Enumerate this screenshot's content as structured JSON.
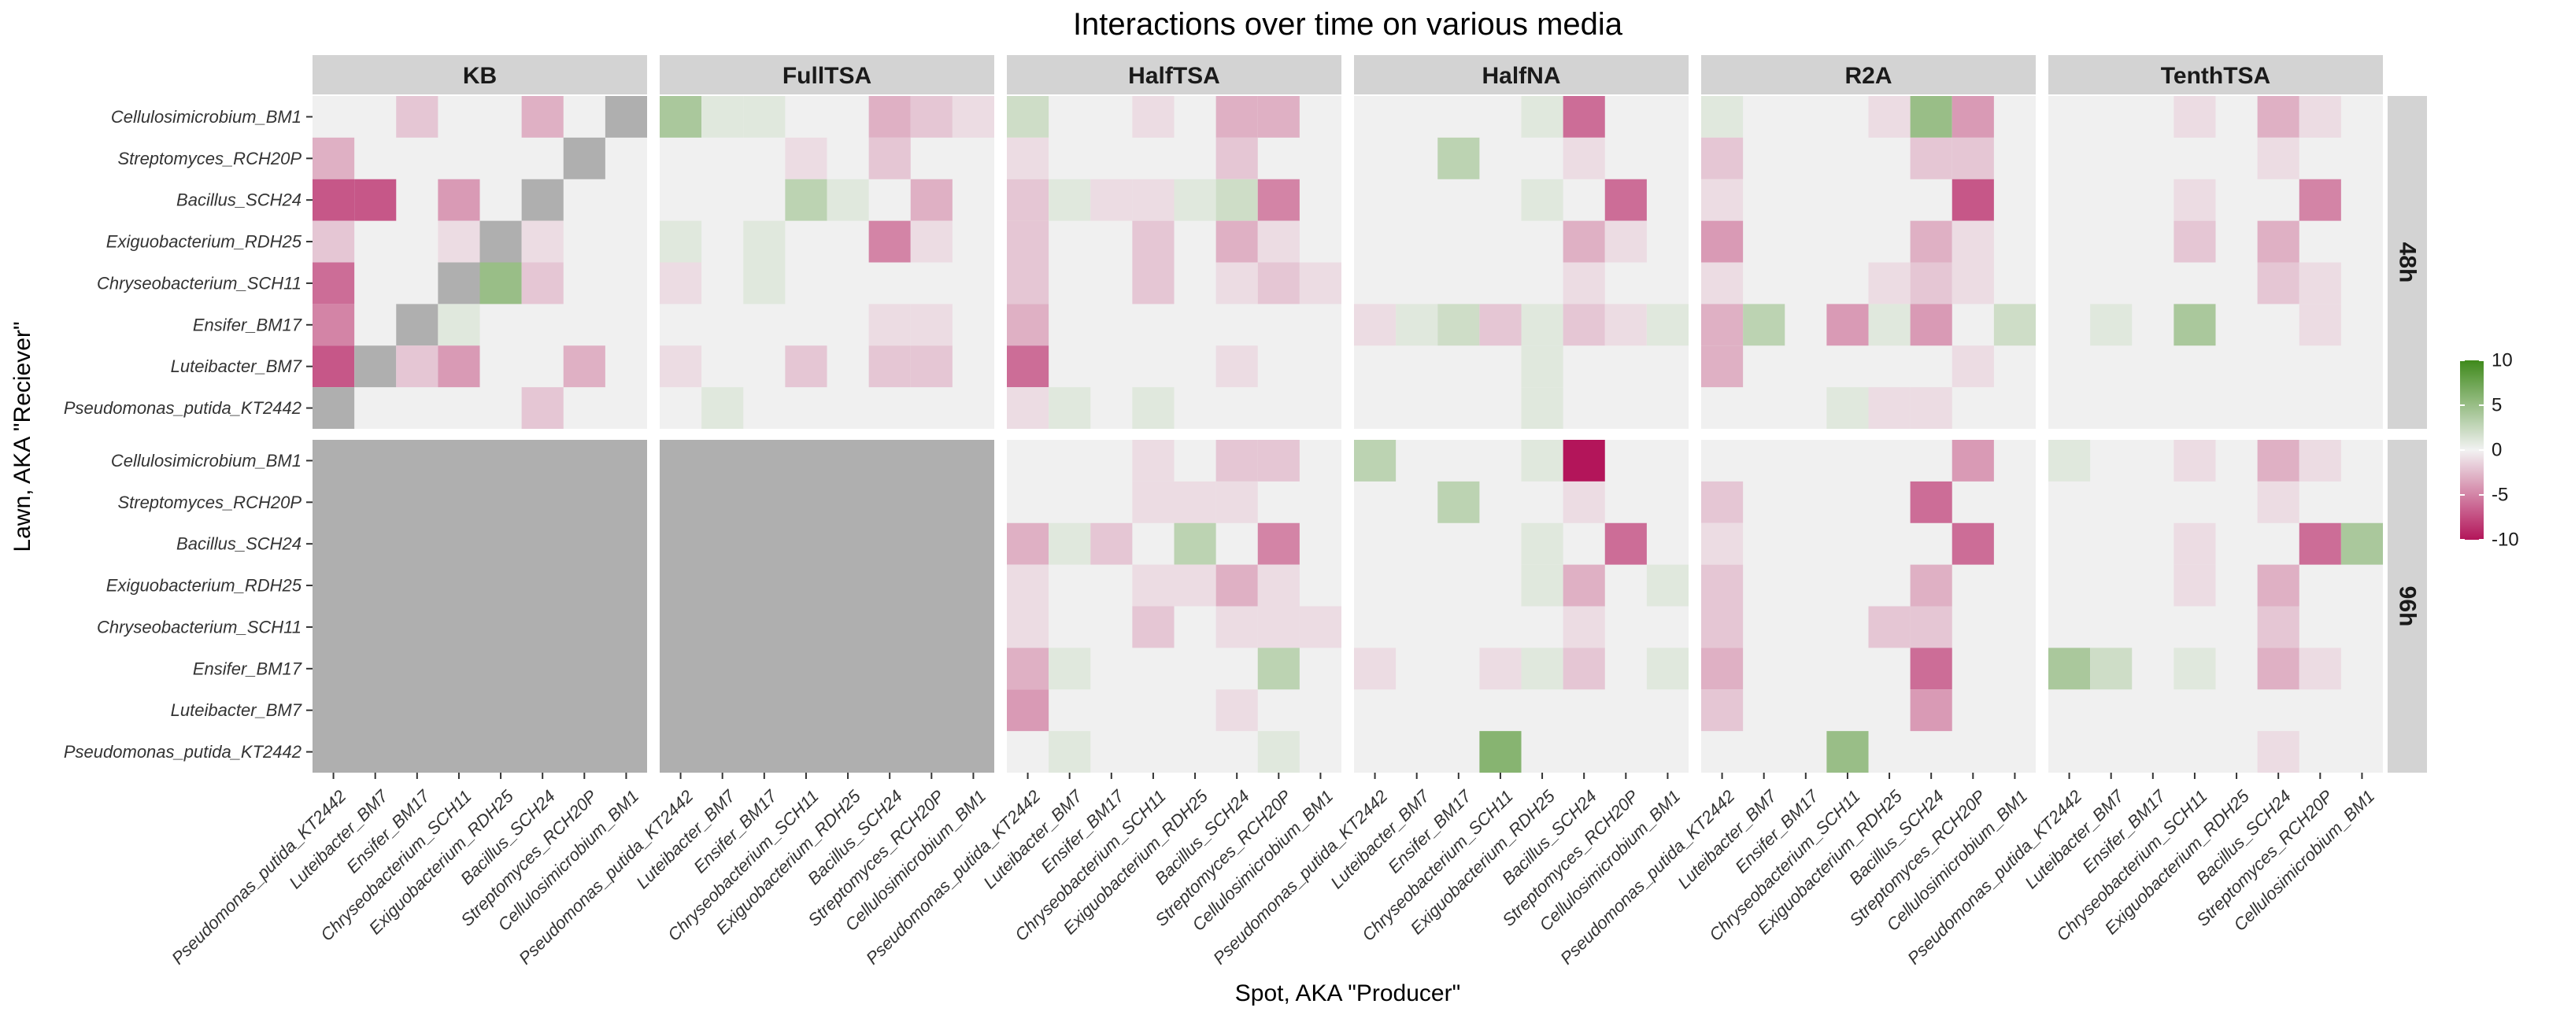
{
  "chart_data": {
    "type": "heatmap",
    "title": "Interactions over time on various media",
    "xlabel": "Spot, AKA \"Producer\"",
    "ylabel": "Lawn, AKA \"Reciever\"",
    "facet_columns": [
      "KB",
      "FullTSA",
      "HalfTSA",
      "HalfNA",
      "R2A",
      "TenthTSA"
    ],
    "facet_rows": [
      "48h",
      "96h"
    ],
    "x_categories": [
      "Pseudomonas_putida_KT2442",
      "Luteibacter_BM7",
      "Ensifer_BM17",
      "Chryseobacterium_SCH11",
      "Exiguobacterium_RDH25",
      "Bacillus_SCH24",
      "Streptomyces_RCH20P",
      "Cellulosimicrobium_BM1"
    ],
    "y_categories": [
      "Cellulosimicrobium_BM1",
      "Streptomyces_RCH20P",
      "Bacillus_SCH24",
      "Exiguobacterium_RDH25",
      "Chryseobacterium_SCH11",
      "Ensifer_BM17",
      "Luteibacter_BM7",
      "Pseudomonas_putida_KT2442"
    ],
    "legend": {
      "ticks": [
        10,
        5,
        0,
        -5,
        -10
      ],
      "range": [
        -10,
        10
      ],
      "low_color": "#b3155a",
      "mid_color": "#f2f2f2",
      "high_color": "#3f8a1b",
      "na_color": "#afafaf",
      "placement": "right"
    },
    "panel_background": "#f0f0f0",
    "strip_background": "#d3d3d3",
    "panels": [
      {
        "facet": "KB",
        "time": "48h",
        "na_all": false,
        "values": [
          [
            0,
            0,
            -2,
            0,
            0,
            -3,
            0,
            null
          ],
          [
            -3,
            0,
            0,
            0,
            0,
            0,
            null,
            0
          ],
          [
            -7,
            -7,
            0,
            -4,
            0,
            null,
            0,
            0
          ],
          [
            -2,
            0,
            0,
            -1,
            null,
            -1,
            0,
            0
          ],
          [
            -6,
            0,
            0,
            null,
            5,
            -2,
            0,
            0
          ],
          [
            -5,
            0,
            null,
            1,
            0,
            0,
            0,
            0
          ],
          [
            -7,
            null,
            -2,
            -4,
            0,
            0,
            -3,
            0
          ],
          [
            null,
            0,
            0,
            0,
            0,
            -2,
            0,
            0
          ]
        ]
      },
      {
        "facet": "FullTSA",
        "time": "48h",
        "na_all": false,
        "values": [
          [
            4,
            1,
            1,
            0,
            0,
            -3,
            -2,
            -1
          ],
          [
            0,
            0,
            0,
            -1,
            0,
            -2,
            0,
            0
          ],
          [
            0,
            0,
            0,
            3,
            1,
            0,
            -3,
            0
          ],
          [
            1,
            0,
            1,
            0,
            0,
            -5,
            -1,
            0
          ],
          [
            -1,
            0,
            1,
            0,
            0,
            0,
            0,
            0
          ],
          [
            0,
            0,
            0,
            0,
            0,
            -1,
            -1,
            0
          ],
          [
            -1,
            0,
            0,
            -2,
            0,
            -2,
            -2,
            0
          ],
          [
            0,
            1,
            0,
            0,
            0,
            0,
            0,
            0
          ]
        ]
      },
      {
        "facet": "HalfTSA",
        "time": "48h",
        "na_all": false,
        "values": [
          [
            2,
            0,
            0,
            -1,
            0,
            -3,
            -3,
            0
          ],
          [
            -1,
            0,
            0,
            0,
            0,
            -2,
            0,
            0
          ],
          [
            -2,
            1,
            -1,
            -1,
            1,
            2,
            -5,
            0
          ],
          [
            -2,
            0,
            0,
            -2,
            0,
            -3,
            -1,
            0
          ],
          [
            -2,
            0,
            0,
            -2,
            0,
            -1,
            -2,
            -1
          ],
          [
            -3,
            0,
            0,
            0,
            0,
            0,
            0,
            0
          ],
          [
            -6,
            0,
            0,
            0,
            0,
            -1,
            0,
            0
          ],
          [
            -1,
            1,
            0,
            1,
            0,
            0,
            0,
            0
          ]
        ]
      },
      {
        "facet": "HalfNA",
        "time": "48h",
        "na_all": false,
        "values": [
          [
            0,
            0,
            0,
            0,
            1,
            -6,
            0,
            0
          ],
          [
            0,
            0,
            3,
            0,
            0,
            -1,
            0,
            0
          ],
          [
            0,
            0,
            0,
            0,
            1,
            0,
            -6,
            0
          ],
          [
            0,
            0,
            0,
            0,
            0,
            -3,
            -1,
            0
          ],
          [
            0,
            0,
            0,
            0,
            0,
            -1,
            0,
            0
          ],
          [
            -1,
            1,
            2,
            -2,
            1,
            -2,
            -1,
            1
          ],
          [
            0,
            0,
            0,
            0,
            1,
            0,
            0,
            0
          ],
          [
            0,
            0,
            0,
            0,
            1,
            0,
            0,
            0
          ]
        ]
      },
      {
        "facet": "R2A",
        "time": "48h",
        "na_all": false,
        "values": [
          [
            1,
            0,
            0,
            0,
            -1,
            5,
            -4,
            0
          ],
          [
            -2,
            0,
            0,
            0,
            0,
            -2,
            -2,
            0
          ],
          [
            -1,
            0,
            0,
            0,
            0,
            0,
            -7,
            0
          ],
          [
            -4,
            0,
            0,
            0,
            0,
            -3,
            -1,
            0
          ],
          [
            -1,
            0,
            0,
            0,
            -1,
            -2,
            -1,
            0
          ],
          [
            -3,
            3,
            0,
            -4,
            1,
            -4,
            0,
            2
          ],
          [
            -3,
            0,
            0,
            0,
            0,
            0,
            -1,
            0
          ],
          [
            0,
            0,
            0,
            1,
            -1,
            -1,
            0,
            0
          ]
        ]
      },
      {
        "facet": "TenthTSA",
        "time": "48h",
        "na_all": false,
        "values": [
          [
            0,
            0,
            0,
            -1,
            0,
            -3,
            -1,
            0
          ],
          [
            0,
            0,
            0,
            0,
            0,
            -1,
            0,
            0
          ],
          [
            0,
            0,
            0,
            -1,
            0,
            0,
            -5,
            0
          ],
          [
            0,
            0,
            0,
            -2,
            0,
            -3,
            0,
            0
          ],
          [
            0,
            0,
            0,
            0,
            0,
            -2,
            -1,
            0
          ],
          [
            0,
            1,
            0,
            4,
            0,
            0,
            -1,
            0
          ],
          [
            0,
            0,
            0,
            0,
            0,
            0,
            0,
            0
          ],
          [
            0,
            0,
            0,
            0,
            0,
            0,
            0,
            0
          ]
        ]
      },
      {
        "facet": "KB",
        "time": "96h",
        "na_all": true,
        "values": []
      },
      {
        "facet": "FullTSA",
        "time": "96h",
        "na_all": true,
        "values": []
      },
      {
        "facet": "HalfTSA",
        "time": "96h",
        "na_all": false,
        "values": [
          [
            0,
            0,
            0,
            -1,
            0,
            -2,
            -2,
            0
          ],
          [
            0,
            0,
            0,
            -1,
            -1,
            -1,
            0,
            0
          ],
          [
            -3,
            1,
            -2,
            0,
            3,
            0,
            -5,
            0
          ],
          [
            -1,
            0,
            0,
            -1,
            -1,
            -3,
            -1,
            0
          ],
          [
            -1,
            0,
            0,
            -2,
            0,
            -1,
            -1,
            -1
          ],
          [
            -3,
            1,
            0,
            0,
            0,
            0,
            3,
            0
          ],
          [
            -4,
            0,
            0,
            0,
            0,
            -1,
            0,
            0
          ],
          [
            0,
            1,
            0,
            0,
            0,
            0,
            1,
            0
          ]
        ]
      },
      {
        "facet": "HalfNA",
        "time": "96h",
        "na_all": false,
        "values": [
          [
            3,
            0,
            0,
            0,
            1,
            -10,
            0,
            0
          ],
          [
            0,
            0,
            3,
            0,
            0,
            -1,
            0,
            0
          ],
          [
            0,
            0,
            0,
            0,
            1,
            0,
            -6,
            0
          ],
          [
            0,
            0,
            0,
            0,
            1,
            -3,
            0,
            1
          ],
          [
            0,
            0,
            0,
            0,
            0,
            -1,
            0,
            0
          ],
          [
            -1,
            0,
            0,
            -1,
            1,
            -2,
            0,
            1
          ],
          [
            0,
            0,
            0,
            0,
            0,
            0,
            0,
            0
          ],
          [
            0,
            0,
            0,
            6,
            0,
            0,
            0,
            0
          ]
        ]
      },
      {
        "facet": "R2A",
        "time": "96h",
        "na_all": false,
        "values": [
          [
            0,
            0,
            0,
            0,
            0,
            0,
            -4,
            0
          ],
          [
            -2,
            0,
            0,
            0,
            0,
            -6,
            0,
            0
          ],
          [
            -1,
            0,
            0,
            0,
            0,
            0,
            -6,
            0
          ],
          [
            -2,
            0,
            0,
            0,
            0,
            -3,
            0,
            0
          ],
          [
            -2,
            0,
            0,
            0,
            -2,
            -2,
            0,
            0
          ],
          [
            -3,
            0,
            0,
            0,
            0,
            -6,
            0,
            0
          ],
          [
            -2,
            0,
            0,
            0,
            0,
            -4,
            0,
            0
          ],
          [
            0,
            0,
            0,
            5,
            0,
            0,
            0,
            0
          ]
        ]
      },
      {
        "facet": "TenthTSA",
        "time": "96h",
        "na_all": false,
        "values": [
          [
            1,
            0,
            0,
            -1,
            0,
            -3,
            -1,
            0
          ],
          [
            0,
            0,
            0,
            0,
            0,
            -1,
            0,
            0
          ],
          [
            0,
            0,
            0,
            -1,
            0,
            0,
            -6,
            4
          ],
          [
            0,
            0,
            0,
            -1,
            0,
            -3,
            0,
            0
          ],
          [
            0,
            0,
            0,
            0,
            0,
            -2,
            0,
            0
          ],
          [
            4,
            2,
            0,
            1,
            0,
            -3,
            -1,
            0
          ],
          [
            0,
            0,
            0,
            0,
            0,
            0,
            0,
            0
          ],
          [
            0,
            0,
            0,
            0,
            0,
            -1,
            0,
            0
          ]
        ]
      }
    ]
  }
}
